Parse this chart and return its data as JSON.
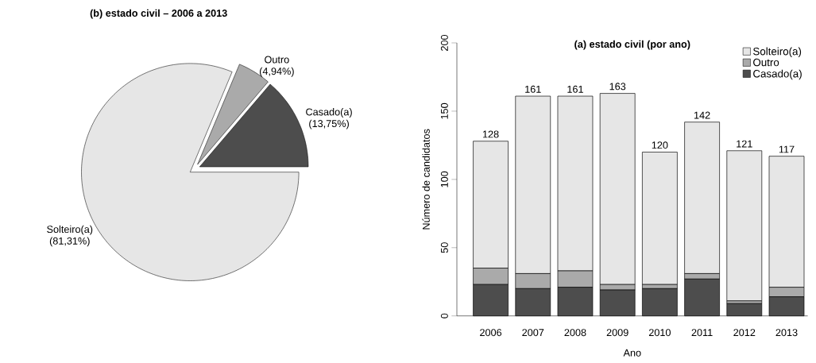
{
  "chart_data": [
    {
      "type": "pie",
      "title": "(b) estado civil – 2006 a 2013",
      "categories": [
        "Casado(a)",
        "Outro",
        "Solteiro(a)"
      ],
      "values": [
        13.75,
        4.94,
        81.31
      ],
      "value_labels": [
        "(13,75%)",
        "(4,94%)",
        "(81,31%)"
      ],
      "colors": [
        "#4d4d4d",
        "#aaaaaa",
        "#e6e6e6"
      ]
    },
    {
      "type": "bar",
      "title": "(a) estado civil (por ano)",
      "xlabel": "Ano",
      "ylabel": "Número de candidatos",
      "categories": [
        "2006",
        "2007",
        "2008",
        "2009",
        "2010",
        "2011",
        "2012",
        "2013"
      ],
      "stacked": true,
      "series": [
        {
          "name": "Casado(a)",
          "color": "#4d4d4d",
          "values": [
            23,
            20,
            21,
            19,
            20,
            27,
            9,
            14
          ]
        },
        {
          "name": "Outro",
          "color": "#aaaaaa",
          "values": [
            12,
            11,
            12,
            4,
            3,
            4,
            2,
            7
          ]
        },
        {
          "name": "Solteiro(a)",
          "color": "#e6e6e6",
          "values": [
            93,
            130,
            128,
            140,
            97,
            111,
            110,
            96
          ]
        }
      ],
      "totals": [
        "128",
        "161",
        "161",
        "163",
        "120",
        "142",
        "121",
        "117"
      ],
      "ylim": [
        0,
        200
      ],
      "yticks": [
        0,
        50,
        100,
        150,
        200
      ],
      "legend": "top right"
    }
  ]
}
